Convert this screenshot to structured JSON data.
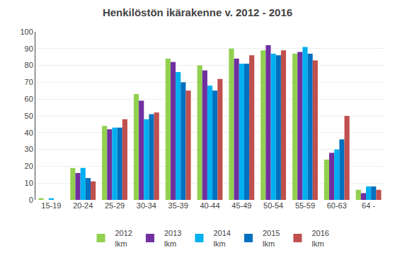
{
  "chart_data": {
    "type": "bar",
    "title": "Henkilöstön ikärakenne v. 2012 - 2016",
    "categories": [
      "15-19",
      "20-24",
      "25-29",
      "30-34",
      "35-39",
      "40-44",
      "45-49",
      "50-54",
      "55-59",
      "60-63",
      "64 -"
    ],
    "series": [
      {
        "name": "2012\nlkm",
        "color": "#92d050",
        "values": [
          1,
          19,
          44,
          63,
          84,
          80,
          90,
          89,
          87,
          24,
          6
        ]
      },
      {
        "name": "2013\nlkm",
        "color": "#7030a0",
        "values": [
          0,
          16,
          42,
          59,
          82,
          77,
          84,
          92,
          88,
          28,
          4
        ]
      },
      {
        "name": "2014\nlkm",
        "color": "#00b0f0",
        "values": [
          1,
          19,
          43,
          48,
          76,
          68,
          81,
          87,
          91,
          30,
          8
        ]
      },
      {
        "name": "2015\nlkm",
        "color": "#0070c0",
        "values": [
          0,
          13,
          43,
          51,
          70,
          65,
          81,
          86,
          87,
          36,
          8
        ]
      },
      {
        "name": "2016\nlkm",
        "color": "#c0504d",
        "values": [
          0,
          11,
          48,
          52,
          65,
          72,
          86,
          89,
          83,
          50,
          6
        ]
      }
    ],
    "ylim": [
      0,
      100
    ],
    "yticks": [
      0,
      10,
      20,
      30,
      40,
      50,
      60,
      70,
      80,
      90,
      100
    ],
    "grid": true,
    "legend": "bottom"
  }
}
